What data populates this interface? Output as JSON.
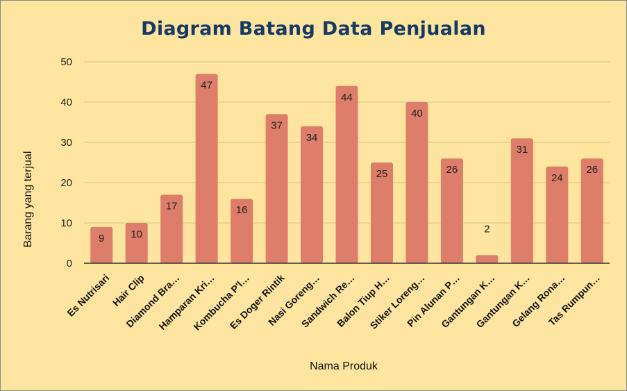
{
  "chart_data": {
    "type": "bar",
    "title": "Diagram Batang Data Penjualan",
    "xlabel": "Nama Produk",
    "ylabel": "Barang yang terjual",
    "ylim": [
      0,
      50
    ],
    "yticks": [
      0,
      10,
      20,
      30,
      40,
      50
    ],
    "grid": true,
    "categories": [
      "Es Nutrisari",
      "Hair Clip",
      "Diamond Bra…",
      "Hamparan Kri…",
      "Kombucha P'l…",
      "Es Doger Rintik",
      "Nasi Goreng…",
      "Sandwich Re…",
      "Balon Tiup H…",
      "Stiker Loreng…",
      "Pin Alunan P…",
      "Gantungan K…",
      "Gantungan K…",
      "Gelang Rona…",
      "Tas Rumpun…"
    ],
    "values": [
      9,
      10,
      17,
      47,
      16,
      37,
      34,
      44,
      25,
      40,
      26,
      2,
      31,
      24,
      26
    ],
    "data_labels": [
      "9",
      "10",
      "17",
      "47",
      "16",
      "37",
      "34",
      "44",
      "25",
      "40",
      "26",
      "2",
      "31",
      "24",
      "26"
    ],
    "colors": {
      "bar": "#de7d69",
      "background": "#fde59f",
      "grid": "#d9c481",
      "title": "#163a66",
      "label_outside": "#e58a76"
    }
  }
}
